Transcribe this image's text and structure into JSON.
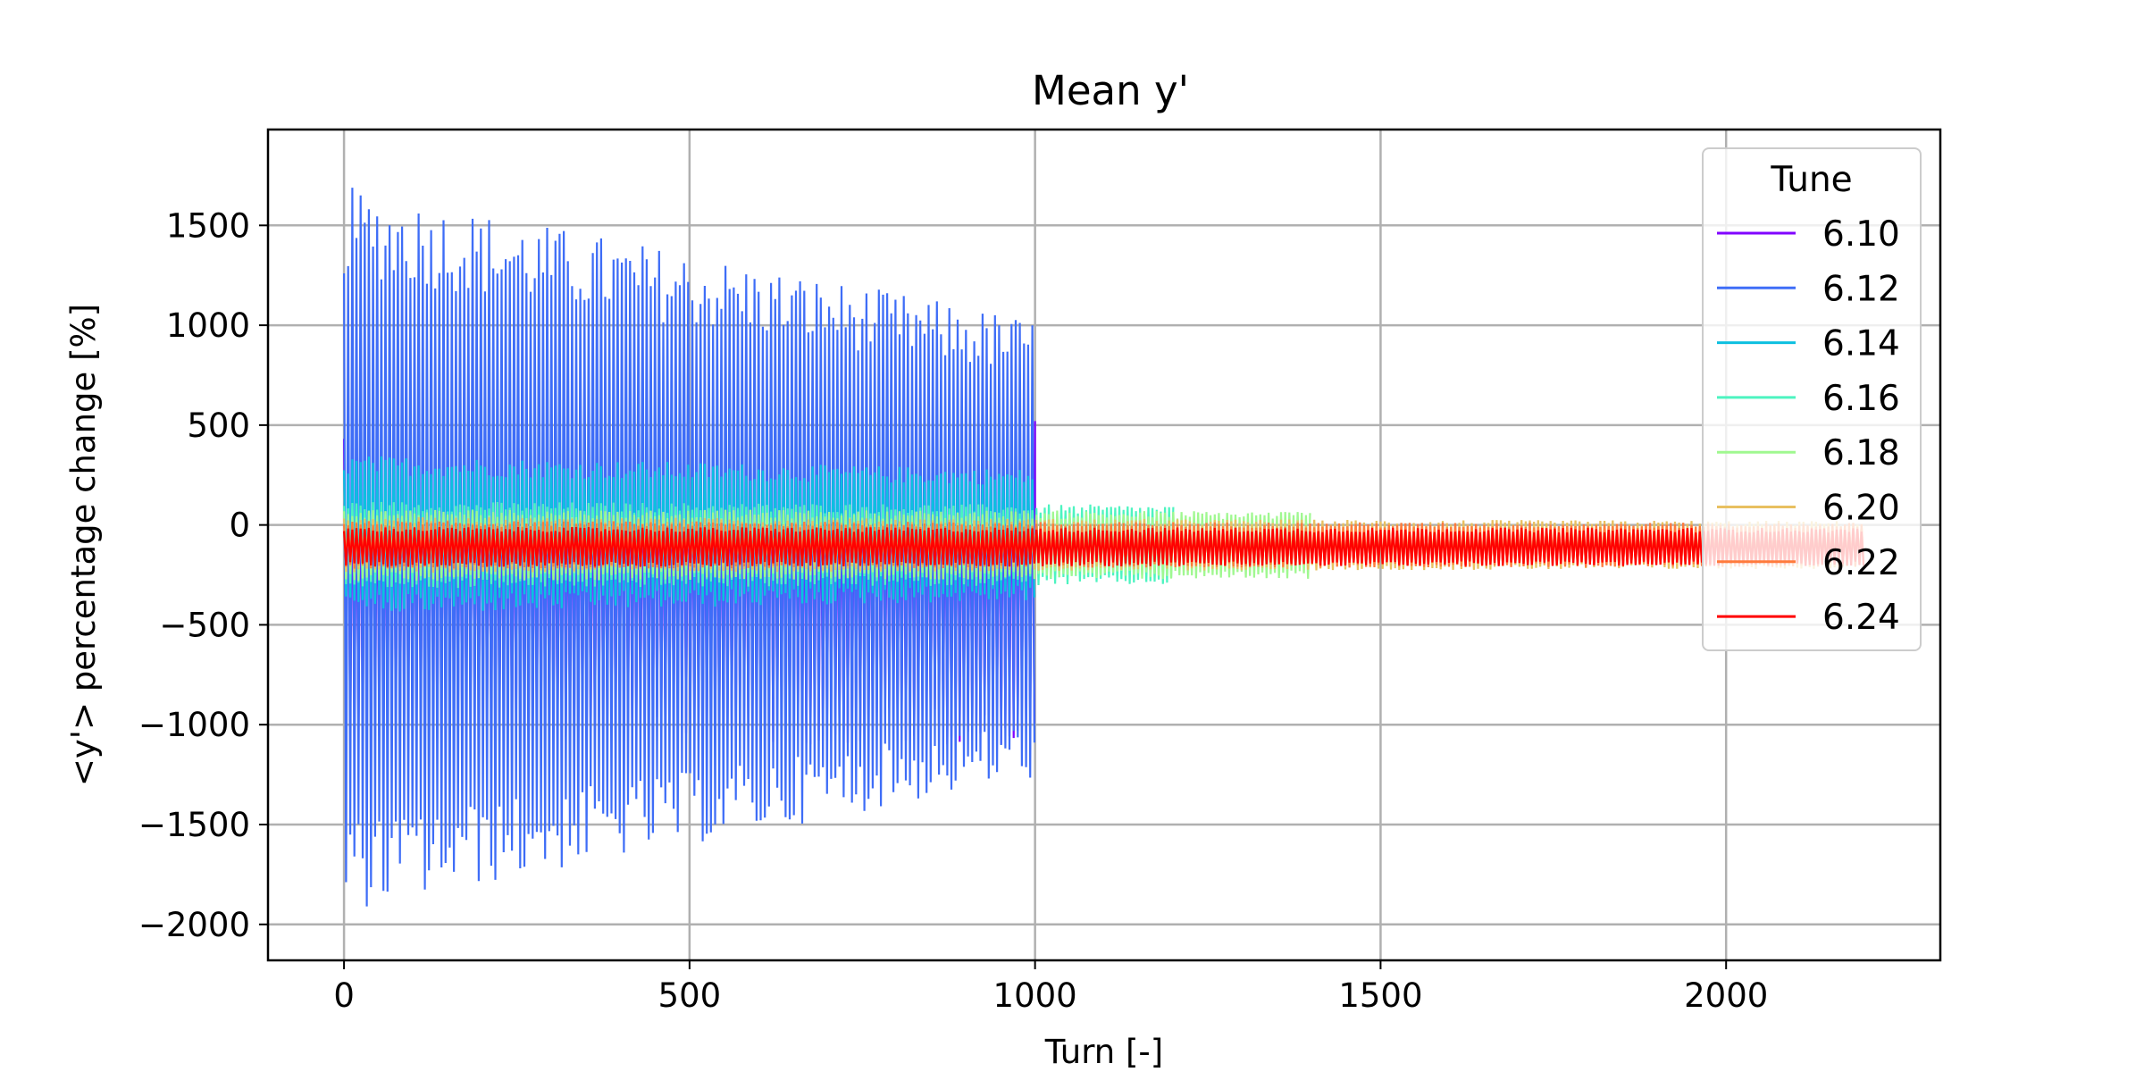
{
  "chart_data": {
    "type": "line",
    "title": "Mean y'",
    "xlabel": "Turn [-]",
    "ylabel": "<y'> percentage change [%]",
    "xlim": [
      -110,
      2310
    ],
    "ylim": [
      -2180,
      1980
    ],
    "xticks": [
      0,
      500,
      1000,
      1500,
      2000
    ],
    "xtick_labels": [
      "0",
      "500",
      "1000",
      "1500",
      "2000"
    ],
    "yticks": [
      -2000,
      -1500,
      -1000,
      -500,
      0,
      500,
      1000,
      1500
    ],
    "ytick_labels": [
      "−2000",
      "−1500",
      "−1000",
      "−500",
      "0",
      "500",
      "1000",
      "1500"
    ],
    "grid": true,
    "legend": {
      "title": "Tune",
      "placement": "upper right"
    },
    "series": [
      {
        "name": "6.10",
        "color": "#8000ff",
        "turns": 1000,
        "center": -300,
        "amp_start": 800,
        "amp_end": 800,
        "note_spike": true
      },
      {
        "name": "6.12",
        "color": "#3e6df7",
        "turns": 1000,
        "center": -120,
        "amp_start": 1820,
        "amp_end": 1150
      },
      {
        "name": "6.14",
        "color": "#0dc0e0",
        "turns": 1000,
        "center": -50,
        "amp_start": 400,
        "amp_end": 330
      },
      {
        "name": "6.16",
        "color": "#4df4c0",
        "turns": 1200,
        "center": -100,
        "amp_start": 220,
        "amp_end": 200
      },
      {
        "name": "6.18",
        "color": "#a0f890",
        "turns": 1400,
        "center": -100,
        "amp_start": 180,
        "amp_end": 170
      },
      {
        "name": "6.20",
        "color": "#e8c060",
        "turns": 2200,
        "center": -100,
        "amp_start": 140,
        "amp_end": 120
      },
      {
        "name": "6.22",
        "color": "#ff7b3c",
        "turns": 2200,
        "center": -100,
        "amp_start": 120,
        "amp_end": 110
      },
      {
        "name": "6.24",
        "color": "#ff0000",
        "turns": 2200,
        "center": -110,
        "amp_start": 100,
        "amp_end": 95
      }
    ]
  }
}
